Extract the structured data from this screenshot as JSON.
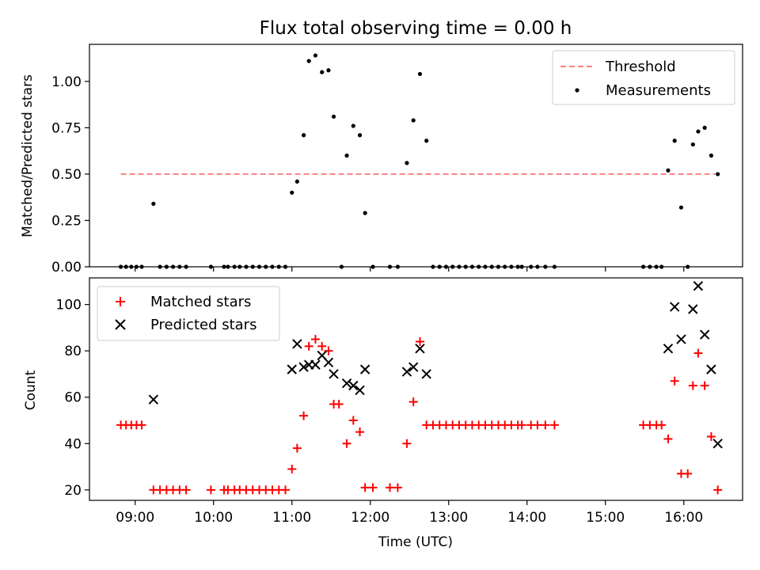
{
  "chart_data": [
    {
      "type": "scatter",
      "title": "Flux total observing time = 0.00 h",
      "xlabel": "",
      "ylabel": "Matched/Predicted stars",
      "xlim": [
        "08:25",
        "16:45"
      ],
      "ylim": [
        0,
        1.2
      ],
      "yticks": [
        0.0,
        0.25,
        0.5,
        0.75,
        1.0
      ],
      "ytick_labels": [
        "0.00",
        "0.25",
        "0.50",
        "0.75",
        "1.00"
      ],
      "grid": false,
      "legend": "top-right",
      "series": [
        {
          "name": "Threshold",
          "kind": "line",
          "style": "dashed",
          "color": "#ff8080",
          "x": [
            "08:49",
            "16:24"
          ],
          "y": [
            0.5,
            0.5
          ]
        },
        {
          "name": "Measurements",
          "kind": "dot",
          "color": "#000000",
          "points": [
            [
              "08:49",
              0
            ],
            [
              "08:53",
              0
            ],
            [
              "08:57",
              0
            ],
            [
              "09:01",
              0
            ],
            [
              "09:05",
              0
            ],
            [
              "09:14",
              0.34
            ],
            [
              "09:19",
              0
            ],
            [
              "09:24",
              0
            ],
            [
              "09:29",
              0
            ],
            [
              "09:34",
              0
            ],
            [
              "09:39",
              0
            ],
            [
              "09:58",
              0
            ],
            [
              "10:08",
              0
            ],
            [
              "10:11",
              0
            ],
            [
              "10:16",
              0
            ],
            [
              "10:20",
              0
            ],
            [
              "10:25",
              0
            ],
            [
              "10:30",
              0
            ],
            [
              "10:35",
              0
            ],
            [
              "10:40",
              0
            ],
            [
              "10:45",
              0
            ],
            [
              "10:50",
              0
            ],
            [
              "10:55",
              0
            ],
            [
              "11:00",
              0.4
            ],
            [
              "11:04",
              0.46
            ],
            [
              "11:09",
              0.71
            ],
            [
              "11:13",
              1.11
            ],
            [
              "11:18",
              1.14
            ],
            [
              "11:23",
              1.05
            ],
            [
              "11:28",
              1.06
            ],
            [
              "11:32",
              0.81
            ],
            [
              "11:38",
              0
            ],
            [
              "11:42",
              0.6
            ],
            [
              "11:47",
              0.76
            ],
            [
              "11:52",
              0.71
            ],
            [
              "11:56",
              0.29
            ],
            [
              "12:02",
              0
            ],
            [
              "12:15",
              0
            ],
            [
              "12:21",
              0
            ],
            [
              "12:28",
              0.56
            ],
            [
              "12:33",
              0.79
            ],
            [
              "12:38",
              1.04
            ],
            [
              "12:43",
              0.68
            ],
            [
              "12:48",
              0
            ],
            [
              "12:53",
              0
            ],
            [
              "12:58",
              0
            ],
            [
              "13:03",
              0
            ],
            [
              "13:08",
              0
            ],
            [
              "13:13",
              0
            ],
            [
              "13:18",
              0
            ],
            [
              "13:23",
              0
            ],
            [
              "13:28",
              0
            ],
            [
              "13:33",
              0
            ],
            [
              "13:38",
              0
            ],
            [
              "13:43",
              0
            ],
            [
              "13:48",
              0
            ],
            [
              "13:53",
              0
            ],
            [
              "13:56",
              0
            ],
            [
              "14:03",
              0
            ],
            [
              "14:08",
              0
            ],
            [
              "14:14",
              0
            ],
            [
              "14:21",
              0
            ],
            [
              "15:29",
              0
            ],
            [
              "15:34",
              0
            ],
            [
              "15:39",
              0
            ],
            [
              "15:43",
              0
            ],
            [
              "15:48",
              0.52
            ],
            [
              "15:53",
              0.68
            ],
            [
              "15:58",
              0.32
            ],
            [
              "16:03",
              0
            ],
            [
              "16:07",
              0.66
            ],
            [
              "16:11",
              0.73
            ],
            [
              "16:16",
              0.75
            ],
            [
              "16:21",
              0.6
            ],
            [
              "16:26",
              0.5
            ]
          ]
        }
      ]
    },
    {
      "type": "scatter",
      "title": "",
      "xlabel": "Time (UTC)",
      "ylabel": "Count",
      "xlim": [
        "08:25",
        "16:45"
      ],
      "ylim": [
        15.5,
        111.5
      ],
      "yticks": [
        20,
        40,
        60,
        80,
        100
      ],
      "ytick_labels": [
        "20",
        "40",
        "60",
        "80",
        "100"
      ],
      "xticks": [
        "09:00",
        "10:00",
        "11:00",
        "12:00",
        "13:00",
        "14:00",
        "15:00",
        "16:00"
      ],
      "xtick_labels": [
        "09:00",
        "10:00",
        "11:00",
        "12:00",
        "13:00",
        "14:00",
        "15:00",
        "16:00"
      ],
      "grid": false,
      "legend": "top-left",
      "series": [
        {
          "name": "Matched stars",
          "marker": "plus",
          "color": "#ff0000",
          "points": [
            [
              "08:49",
              48
            ],
            [
              "08:53",
              48
            ],
            [
              "08:57",
              48
            ],
            [
              "09:01",
              48
            ],
            [
              "09:05",
              48
            ],
            [
              "09:14",
              20
            ],
            [
              "09:19",
              20
            ],
            [
              "09:24",
              20
            ],
            [
              "09:29",
              20
            ],
            [
              "09:34",
              20
            ],
            [
              "09:39",
              20
            ],
            [
              "09:58",
              20
            ],
            [
              "10:08",
              20
            ],
            [
              "10:11",
              20
            ],
            [
              "10:16",
              20
            ],
            [
              "10:20",
              20
            ],
            [
              "10:25",
              20
            ],
            [
              "10:30",
              20
            ],
            [
              "10:35",
              20
            ],
            [
              "10:40",
              20
            ],
            [
              "10:45",
              20
            ],
            [
              "10:50",
              20
            ],
            [
              "10:55",
              20
            ],
            [
              "11:00",
              29
            ],
            [
              "11:04",
              38
            ],
            [
              "11:09",
              52
            ],
            [
              "11:13",
              82
            ],
            [
              "11:18",
              85
            ],
            [
              "11:23",
              82
            ],
            [
              "11:28",
              80
            ],
            [
              "11:32",
              57
            ],
            [
              "11:36",
              57
            ],
            [
              "11:42",
              40
            ],
            [
              "11:47",
              50
            ],
            [
              "11:52",
              45
            ],
            [
              "11:56",
              21
            ],
            [
              "12:02",
              21
            ],
            [
              "12:15",
              21
            ],
            [
              "12:21",
              21
            ],
            [
              "12:28",
              40
            ],
            [
              "12:33",
              58
            ],
            [
              "12:38",
              84
            ],
            [
              "12:43",
              48
            ],
            [
              "12:48",
              48
            ],
            [
              "12:53",
              48
            ],
            [
              "12:58",
              48
            ],
            [
              "13:03",
              48
            ],
            [
              "13:08",
              48
            ],
            [
              "13:13",
              48
            ],
            [
              "13:18",
              48
            ],
            [
              "13:23",
              48
            ],
            [
              "13:28",
              48
            ],
            [
              "13:33",
              48
            ],
            [
              "13:38",
              48
            ],
            [
              "13:43",
              48
            ],
            [
              "13:48",
              48
            ],
            [
              "13:53",
              48
            ],
            [
              "13:56",
              48
            ],
            [
              "14:03",
              48
            ],
            [
              "14:08",
              48
            ],
            [
              "14:14",
              48
            ],
            [
              "14:21",
              48
            ],
            [
              "15:29",
              48
            ],
            [
              "15:34",
              48
            ],
            [
              "15:39",
              48
            ],
            [
              "15:43",
              48
            ],
            [
              "15:48",
              42
            ],
            [
              "15:53",
              67
            ],
            [
              "15:58",
              27
            ],
            [
              "16:03",
              27
            ],
            [
              "16:07",
              65
            ],
            [
              "16:11",
              79
            ],
            [
              "16:16",
              65
            ],
            [
              "16:21",
              43
            ],
            [
              "16:26",
              20
            ]
          ]
        },
        {
          "name": "Predicted stars",
          "marker": "x",
          "color": "#000000",
          "points": [
            [
              "09:14",
              59
            ],
            [
              "11:00",
              72
            ],
            [
              "11:04",
              83
            ],
            [
              "11:09",
              73
            ],
            [
              "11:13",
              74
            ],
            [
              "11:18",
              74
            ],
            [
              "11:23",
              78
            ],
            [
              "11:28",
              75
            ],
            [
              "11:32",
              70
            ],
            [
              "11:42",
              66
            ],
            [
              "11:47",
              65
            ],
            [
              "11:52",
              63
            ],
            [
              "11:56",
              72
            ],
            [
              "12:28",
              71
            ],
            [
              "12:33",
              73
            ],
            [
              "12:38",
              81
            ],
            [
              "12:43",
              70
            ],
            [
              "15:48",
              81
            ],
            [
              "15:53",
              99
            ],
            [
              "15:58",
              85
            ],
            [
              "16:07",
              98
            ],
            [
              "16:11",
              108
            ],
            [
              "16:16",
              87
            ],
            [
              "16:21",
              72
            ],
            [
              "16:26",
              40
            ]
          ]
        }
      ]
    }
  ]
}
